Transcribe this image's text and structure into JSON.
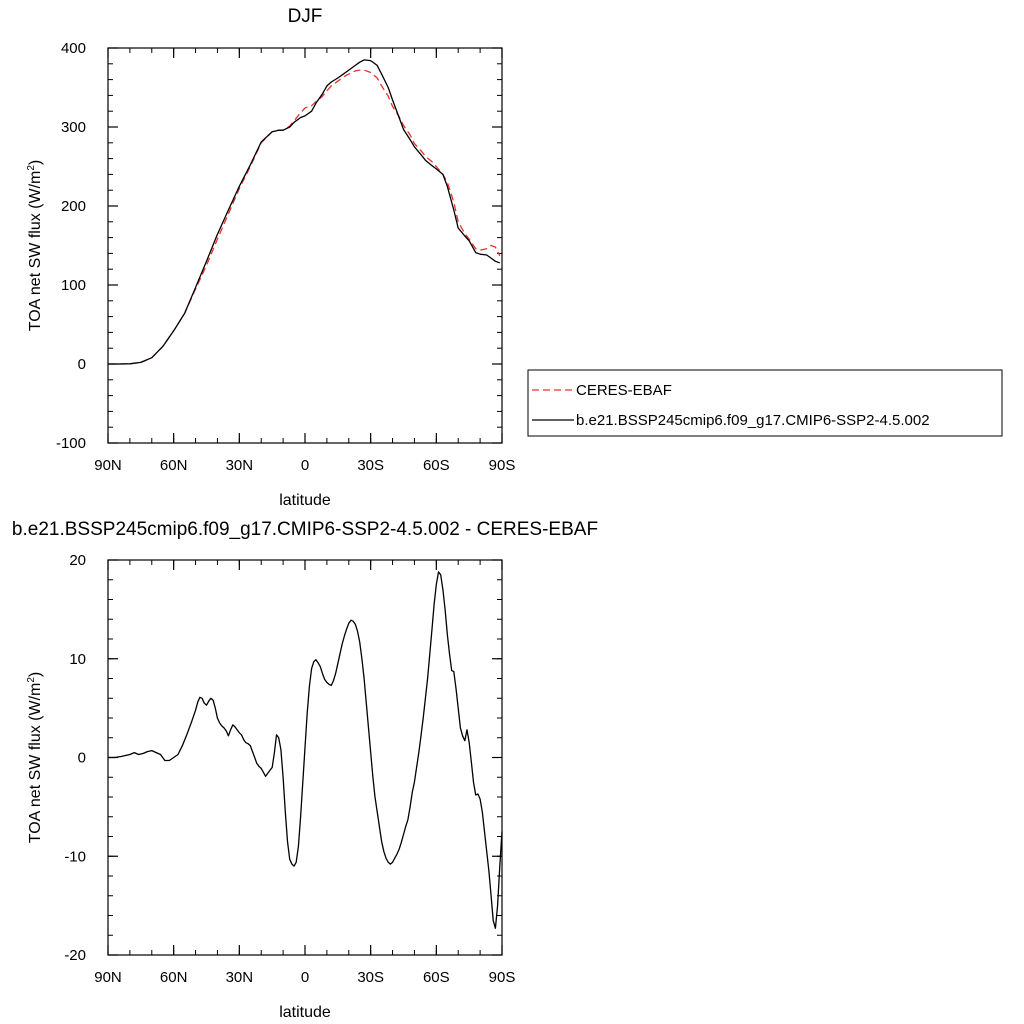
{
  "chart_data": [
    {
      "type": "line",
      "title": "DJF",
      "xlabel": "latitude",
      "ylabel": "TOA net SW flux (W/m",
      "ylabel_sup": "2",
      "ylabel_end": ")",
      "xlim": [
        90,
        -90
      ],
      "ylim": [
        -100,
        400
      ],
      "xticks": [
        {
          "value": 90,
          "label": "90N"
        },
        {
          "value": 60,
          "label": "60N"
        },
        {
          "value": 30,
          "label": "30N"
        },
        {
          "value": 0,
          "label": "0"
        },
        {
          "value": -30,
          "label": "30S"
        },
        {
          "value": -60,
          "label": "60S"
        },
        {
          "value": -90,
          "label": "90S"
        }
      ],
      "yticks": [
        {
          "value": -100,
          "label": "-100"
        },
        {
          "value": 0,
          "label": "0"
        },
        {
          "value": 100,
          "label": "100"
        },
        {
          "value": 200,
          "label": "200"
        },
        {
          "value": 300,
          "label": "300"
        },
        {
          "value": 400,
          "label": "400"
        }
      ],
      "legend_position": "right",
      "series": [
        {
          "name": "CERES-EBAF",
          "color": "#e8302c",
          "dash": "dashed",
          "x": [
            90,
            85,
            80,
            75,
            70,
            65,
            60,
            55,
            50,
            45,
            40,
            35,
            30,
            25,
            20,
            15,
            12,
            10,
            7,
            5,
            2,
            0,
            -3,
            -5,
            -8,
            -10,
            -12,
            -15,
            -18,
            -20,
            -23,
            -25,
            -27,
            -30,
            -33,
            -35,
            -38,
            -40,
            -43,
            -45,
            -48,
            -50,
            -53,
            -55,
            -58,
            -60,
            -63,
            -65,
            -68,
            -70,
            -73,
            -75,
            -78,
            -80,
            -83,
            -85,
            -87,
            -89
          ],
          "y": [
            0,
            0,
            0.3,
            2,
            8,
            22,
            42,
            64,
            95,
            125,
            158,
            190,
            222,
            250,
            280,
            294,
            296,
            296,
            301,
            308,
            318,
            324,
            327,
            332,
            339,
            346,
            352,
            358,
            364,
            367,
            371,
            372,
            372,
            369,
            362,
            352,
            339,
            326,
            313,
            302,
            290,
            279,
            270,
            263,
            256,
            250,
            240,
            230,
            205,
            180,
            165,
            158,
            146,
            144,
            146,
            150,
            148,
            137
          ]
        },
        {
          "name": "b.e21.BSSP245cmip6.f09_g17.CMIP6-SSP2-4.5.002",
          "color": "#000000",
          "dash": "solid",
          "x": [
            90,
            85,
            80,
            75,
            70,
            65,
            60,
            55,
            50,
            45,
            40,
            35,
            30,
            25,
            20,
            15,
            12,
            10,
            7,
            5,
            2,
            0,
            -3,
            -5,
            -8,
            -10,
            -12,
            -15,
            -18,
            -20,
            -23,
            -25,
            -27,
            -30,
            -33,
            -35,
            -38,
            -40,
            -43,
            -45,
            -48,
            -50,
            -53,
            -55,
            -58,
            -60,
            -63,
            -65,
            -68,
            -70,
            -73,
            -75,
            -78,
            -80,
            -83,
            -85,
            -87,
            -89
          ],
          "y": [
            0,
            0,
            0.3,
            2,
            8,
            22,
            42,
            64,
            97,
            130,
            164,
            195,
            225,
            252,
            281,
            294,
            296,
            296,
            300,
            306,
            312,
            314,
            320,
            330,
            342,
            352,
            357,
            362,
            368,
            372,
            378,
            382,
            385,
            384,
            378,
            367,
            350,
            334,
            312,
            297,
            284,
            275,
            265,
            258,
            251,
            247,
            240,
            225,
            195,
            172,
            162,
            156,
            141,
            139,
            138,
            134,
            130,
            128
          ]
        }
      ]
    },
    {
      "type": "line",
      "title": "b.e21.BSSP245cmip6.f09_g17.CMIP6-SSP2-4.5.002 - CERES-EBAF",
      "xlabel": "latitude",
      "ylabel": "TOA net SW flux (W/m",
      "ylabel_sup": "2",
      "ylabel_end": ")",
      "xlim": [
        90,
        -90
      ],
      "ylim": [
        -20,
        20
      ],
      "xticks": [
        {
          "value": 90,
          "label": "90N"
        },
        {
          "value": 60,
          "label": "60N"
        },
        {
          "value": 30,
          "label": "30N"
        },
        {
          "value": 0,
          "label": "0"
        },
        {
          "value": -30,
          "label": "30S"
        },
        {
          "value": -60,
          "label": "60S"
        },
        {
          "value": -90,
          "label": "90S"
        }
      ],
      "yticks": [
        {
          "value": -20,
          "label": "-20"
        },
        {
          "value": -10,
          "label": "-10"
        },
        {
          "value": 0,
          "label": "0"
        },
        {
          "value": 10,
          "label": "10"
        },
        {
          "value": 20,
          "label": "20"
        }
      ],
      "series": [
        {
          "color": "#000000",
          "dash": "solid",
          "x": [
            90,
            87,
            84,
            82,
            80,
            78,
            76,
            74,
            72,
            70,
            69,
            68,
            66,
            64,
            62,
            60,
            58,
            56,
            54,
            52,
            50,
            49,
            48,
            47,
            46,
            45,
            44,
            43,
            42,
            41,
            40,
            39,
            38,
            37,
            36,
            35,
            34,
            33,
            32,
            31,
            30,
            29,
            28,
            27,
            26,
            25,
            24,
            23,
            22,
            21,
            20,
            19,
            18,
            17,
            16,
            15,
            14,
            13,
            12,
            11,
            10,
            9,
            8,
            7,
            6,
            5,
            4,
            3,
            2,
            1,
            0,
            -1,
            -2,
            -3,
            -4,
            -5,
            -6,
            -7,
            -8,
            -9,
            -10,
            -11,
            -12,
            -13,
            -14,
            -15,
            -16,
            -17,
            -18,
            -19,
            -20,
            -21,
            -22,
            -23,
            -24,
            -25,
            -26,
            -27,
            -28,
            -29,
            -30,
            -31,
            -32,
            -33,
            -34,
            -35,
            -36,
            -37,
            -38,
            -39,
            -40,
            -41,
            -42,
            -43,
            -44,
            -45,
            -46,
            -47,
            -48,
            -49,
            -50,
            -51,
            -52,
            -53,
            -54,
            -55,
            -56,
            -57,
            -58,
            -59,
            -60,
            -61,
            -62,
            -63,
            -64,
            -65,
            -66,
            -67,
            -68,
            -69,
            -70,
            -71,
            -72,
            -73,
            -74,
            -75,
            -76,
            -77,
            -78,
            -79,
            -80,
            -81,
            -82,
            -83,
            -84,
            -85,
            -86,
            -87,
            -88,
            -89,
            -90
          ],
          "y": [
            0,
            0,
            0.1,
            0.2,
            0.3,
            0.5,
            0.3,
            0.4,
            0.6,
            0.7,
            0.6,
            0.5,
            0.3,
            -0.3,
            -0.3,
            0,
            0.3,
            1.2,
            2.3,
            3.5,
            4.8,
            5.6,
            6.1,
            6.0,
            5.5,
            5.3,
            5.7,
            6.0,
            5.8,
            5.0,
            4.0,
            3.5,
            3.2,
            3.0,
            2.7,
            2.2,
            2.8,
            3.3,
            3.1,
            2.8,
            2.5,
            2.3,
            1.8,
            1.5,
            1.4,
            1.2,
            0.6,
            0.0,
            -0.6,
            -0.9,
            -1.1,
            -1.5,
            -1.9,
            -1.6,
            -1.3,
            -1.0,
            0.5,
            2.3,
            2.0,
            0.8,
            -2.0,
            -5.5,
            -8.5,
            -10.3,
            -10.8,
            -11.0,
            -10.6,
            -9.0,
            -6.0,
            -2.5,
            1.0,
            4.5,
            7.2,
            9.0,
            9.7,
            9.9,
            9.6,
            9.2,
            8.5,
            7.9,
            7.6,
            7.4,
            7.3,
            7.8,
            8.5,
            9.5,
            10.5,
            11.5,
            12.3,
            13.0,
            13.6,
            13.9,
            13.8,
            13.5,
            12.8,
            11.7,
            10.0,
            8.0,
            5.5,
            3.0,
            0.5,
            -2.0,
            -4.0,
            -5.5,
            -7.0,
            -8.5,
            -9.5,
            -10.2,
            -10.6,
            -10.8,
            -10.6,
            -10.2,
            -9.8,
            -9.3,
            -8.6,
            -7.8,
            -7.0,
            -6.3,
            -5.0,
            -3.5,
            -2.5,
            -1.0,
            0.5,
            2.2,
            4.0,
            6.0,
            8.0,
            10.5,
            13.0,
            15.5,
            17.5,
            18.8,
            18.5,
            17.0,
            15.0,
            12.5,
            10.5,
            8.8,
            8.7,
            7.0,
            5.0,
            3.0,
            2.2,
            1.7,
            2.8,
            1.5,
            -0.5,
            -2.5,
            -3.8,
            -3.7,
            -4.2,
            -5.5,
            -7.5,
            -9.5,
            -11.5,
            -14.0,
            -16.5,
            -17.3,
            -15.0,
            -11.0,
            -7.5
          ]
        }
      ]
    }
  ]
}
